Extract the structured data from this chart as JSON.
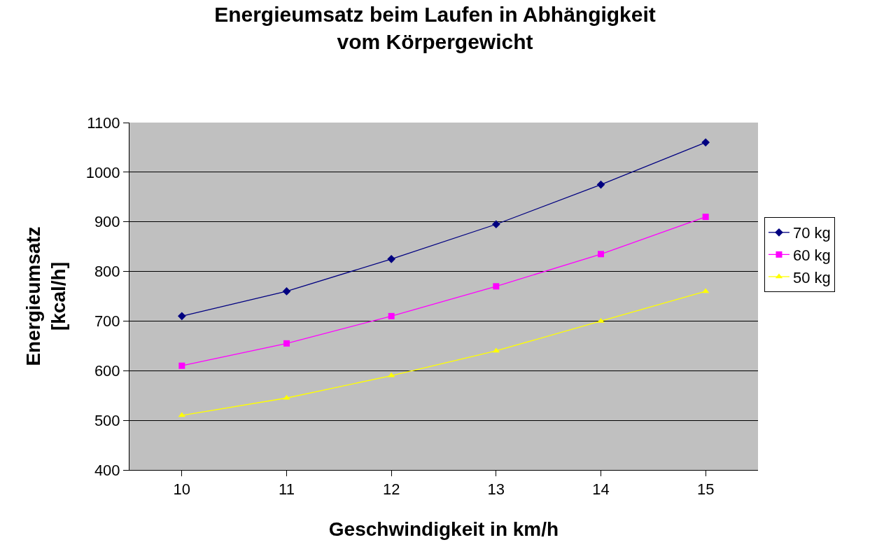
{
  "chart_data": {
    "type": "line",
    "title": "Energieumsatz beim Laufen in Abhängigkeit\nvom Körpergewicht",
    "xlabel": "Geschwindigkeit in km/h",
    "ylabel": "Energieumsatz\n[kcal/h]",
    "categories": [
      "10",
      "11",
      "12",
      "13",
      "14",
      "15"
    ],
    "series": [
      {
        "name": "70 kg",
        "color": "#000080",
        "marker": "diamond",
        "values": [
          710,
          760,
          825,
          895,
          975,
          1060
        ]
      },
      {
        "name": "60 kg",
        "color": "#ff00ff",
        "marker": "square",
        "values": [
          610,
          655,
          710,
          770,
          835,
          910
        ]
      },
      {
        "name": "50 kg",
        "color": "#ffff00",
        "marker": "triangle",
        "values": [
          510,
          545,
          590,
          640,
          700,
          760
        ]
      }
    ],
    "ylim": [
      400,
      1100
    ],
    "yticks": [
      400,
      500,
      600,
      700,
      800,
      900,
      1000,
      1100
    ],
    "grid": "y",
    "legend": "right",
    "line_style": "solid"
  }
}
